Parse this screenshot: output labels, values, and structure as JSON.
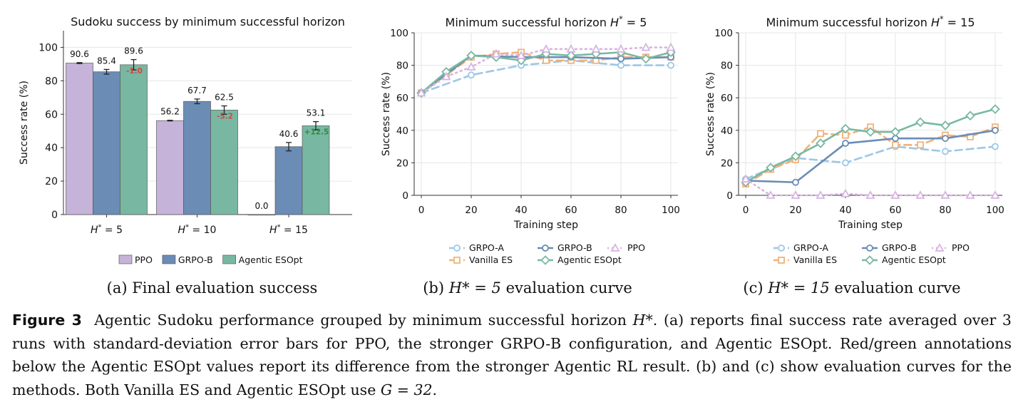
{
  "figure": {
    "subcaptions": [
      {
        "tag": "(a)",
        "text": "Final evaluation success"
      },
      {
        "tag": "(b)",
        "math": "H* = 5",
        "text": "evaluation curve"
      },
      {
        "tag": "(c)",
        "math": "H* = 15",
        "text": "evaluation curve"
      }
    ],
    "caption": {
      "label": "Figure 3",
      "part1": "Agentic Sudoku performance grouped by minimum successful horizon ",
      "math1": "H*",
      "part2": ". (a) reports final success rate averaged over 3 runs with standard-deviation error bars for PPO, the stronger GRPO-B configuration, and Agentic ESOpt. Red/green annotations below the Agentic ESOpt values report its difference from the stronger Agentic RL result. (b) and (c) show evaluation curves for the methods. Both Vanilla ES and Agentic ESOpt use ",
      "math2": "G = 32",
      "part3": "."
    }
  },
  "chart_data": [
    {
      "type": "bar",
      "title": "Sudoku success by minimum successful horizon",
      "xlabel": "",
      "ylabel": "Success rate (%)",
      "ylim": [
        0,
        110
      ],
      "yticks": [
        0,
        20,
        40,
        60,
        80,
        100
      ],
      "grid": "horizontal",
      "legend_position": "bottom",
      "categories": [
        "H* = 5",
        "H* = 10",
        "H* = 15"
      ],
      "series": [
        {
          "name": "PPO",
          "color": "#c5b3d9",
          "values": [
            90.6,
            56.2,
            0.0
          ],
          "err": [
            0.3,
            0.2,
            0.0
          ],
          "labels": [
            "90.6",
            "56.2",
            "0.0"
          ]
        },
        {
          "name": "GRPO-B",
          "color": "#6b8cb5",
          "values": [
            85.4,
            67.7,
            40.6
          ],
          "err": [
            1.4,
            1.4,
            2.5
          ],
          "labels": [
            "85.4",
            "67.7",
            "40.6"
          ]
        },
        {
          "name": "Agentic ESOpt",
          "color": "#78b8a2",
          "values": [
            89.6,
            62.5,
            53.1
          ],
          "err": [
            3.1,
            2.5,
            2.5
          ],
          "labels": [
            "89.6",
            "62.5",
            "53.1"
          ]
        }
      ],
      "deltas": [
        {
          "text": "-1.0",
          "color": "#d64541"
        },
        {
          "text": "-5.2",
          "color": "#d64541"
        },
        {
          "text": "+12.5",
          "color": "#2e8b3a"
        }
      ]
    },
    {
      "type": "line",
      "title": "Minimum successful horizon H* = 5",
      "xlabel": "Training step",
      "ylabel": "Success rate (%)",
      "xlim": [
        0,
        100
      ],
      "ylim": [
        0,
        100
      ],
      "xticks": [
        0,
        20,
        40,
        60,
        80,
        100
      ],
      "yticks": [
        0,
        20,
        40,
        60,
        80,
        100
      ],
      "grid": "both",
      "legend_position": "bottom",
      "series": [
        {
          "name": "GRPO-A",
          "color": "#9cc7e6",
          "dash": "10,6",
          "marker": "circle",
          "x": [
            0,
            20,
            40,
            60,
            80,
            100
          ],
          "y": [
            63,
            74,
            80,
            83,
            80,
            80
          ]
        },
        {
          "name": "Vanilla ES",
          "color": "#f0b27a",
          "dash": "10,6",
          "marker": "square",
          "x": [
            0,
            10,
            20,
            30,
            40,
            50,
            60,
            70,
            80,
            90,
            100
          ],
          "y": [
            63,
            74,
            85,
            87,
            88,
            83,
            83,
            83,
            85,
            85,
            85
          ]
        },
        {
          "name": "GRPO-B",
          "color": "#6b8cb5",
          "dash": "",
          "marker": "circle",
          "x": [
            0,
            20,
            40,
            60,
            80,
            100
          ],
          "y": [
            63,
            86,
            85,
            85,
            84,
            85
          ]
        },
        {
          "name": "Agentic ESOpt",
          "color": "#78b8a2",
          "dash": "",
          "marker": "diamond",
          "x": [
            0,
            10,
            20,
            30,
            40,
            50,
            60,
            70,
            80,
            90,
            100
          ],
          "y": [
            63,
            76,
            86,
            85,
            83,
            87,
            86,
            87,
            88,
            84,
            88
          ]
        },
        {
          "name": "PPO",
          "color": "#d7b4e0",
          "dash": "2,5",
          "marker": "triangle",
          "x": [
            0,
            10,
            20,
            30,
            40,
            50,
            60,
            70,
            80,
            90,
            100
          ],
          "y": [
            63,
            73,
            79,
            87,
            86,
            90,
            90,
            90,
            90,
            91,
            91
          ]
        }
      ]
    },
    {
      "type": "line",
      "title": "Minimum successful horizon H* = 15",
      "xlabel": "Training step",
      "ylabel": "Success rate (%)",
      "xlim": [
        0,
        100
      ],
      "ylim": [
        0,
        100
      ],
      "xticks": [
        0,
        20,
        40,
        60,
        80,
        100
      ],
      "yticks": [
        0,
        20,
        40,
        60,
        80,
        100
      ],
      "grid": "both",
      "legend_position": "bottom",
      "series": [
        {
          "name": "GRPO-A",
          "color": "#9cc7e6",
          "dash": "10,6",
          "marker": "circle",
          "x": [
            0,
            20,
            40,
            60,
            80,
            100
          ],
          "y": [
            10,
            23,
            20,
            30,
            27,
            30
          ]
        },
        {
          "name": "Vanilla ES",
          "color": "#f0b27a",
          "dash": "10,6",
          "marker": "square",
          "x": [
            0,
            10,
            20,
            30,
            40,
            50,
            60,
            70,
            80,
            90,
            100
          ],
          "y": [
            7,
            16,
            22,
            38,
            37,
            42,
            31,
            31,
            37,
            36,
            42
          ]
        },
        {
          "name": "GRPO-B",
          "color": "#6b8cb5",
          "dash": "",
          "marker": "circle",
          "x": [
            0,
            20,
            40,
            60,
            80,
            100
          ],
          "y": [
            9,
            8,
            32,
            35,
            35,
            40
          ]
        },
        {
          "name": "Agentic ESOpt",
          "color": "#78b8a2",
          "dash": "",
          "marker": "diamond",
          "x": [
            0,
            10,
            20,
            30,
            40,
            50,
            60,
            70,
            80,
            90,
            100
          ],
          "y": [
            8,
            17,
            24,
            32,
            41,
            39,
            39,
            45,
            43,
            49,
            53
          ]
        },
        {
          "name": "PPO",
          "color": "#d7b4e0",
          "dash": "2,5",
          "marker": "triangle",
          "x": [
            0,
            10,
            20,
            30,
            40,
            50,
            60,
            70,
            80,
            90,
            100
          ],
          "y": [
            10,
            0,
            0,
            0,
            1,
            0,
            0,
            0,
            0,
            0,
            0
          ]
        }
      ]
    }
  ]
}
